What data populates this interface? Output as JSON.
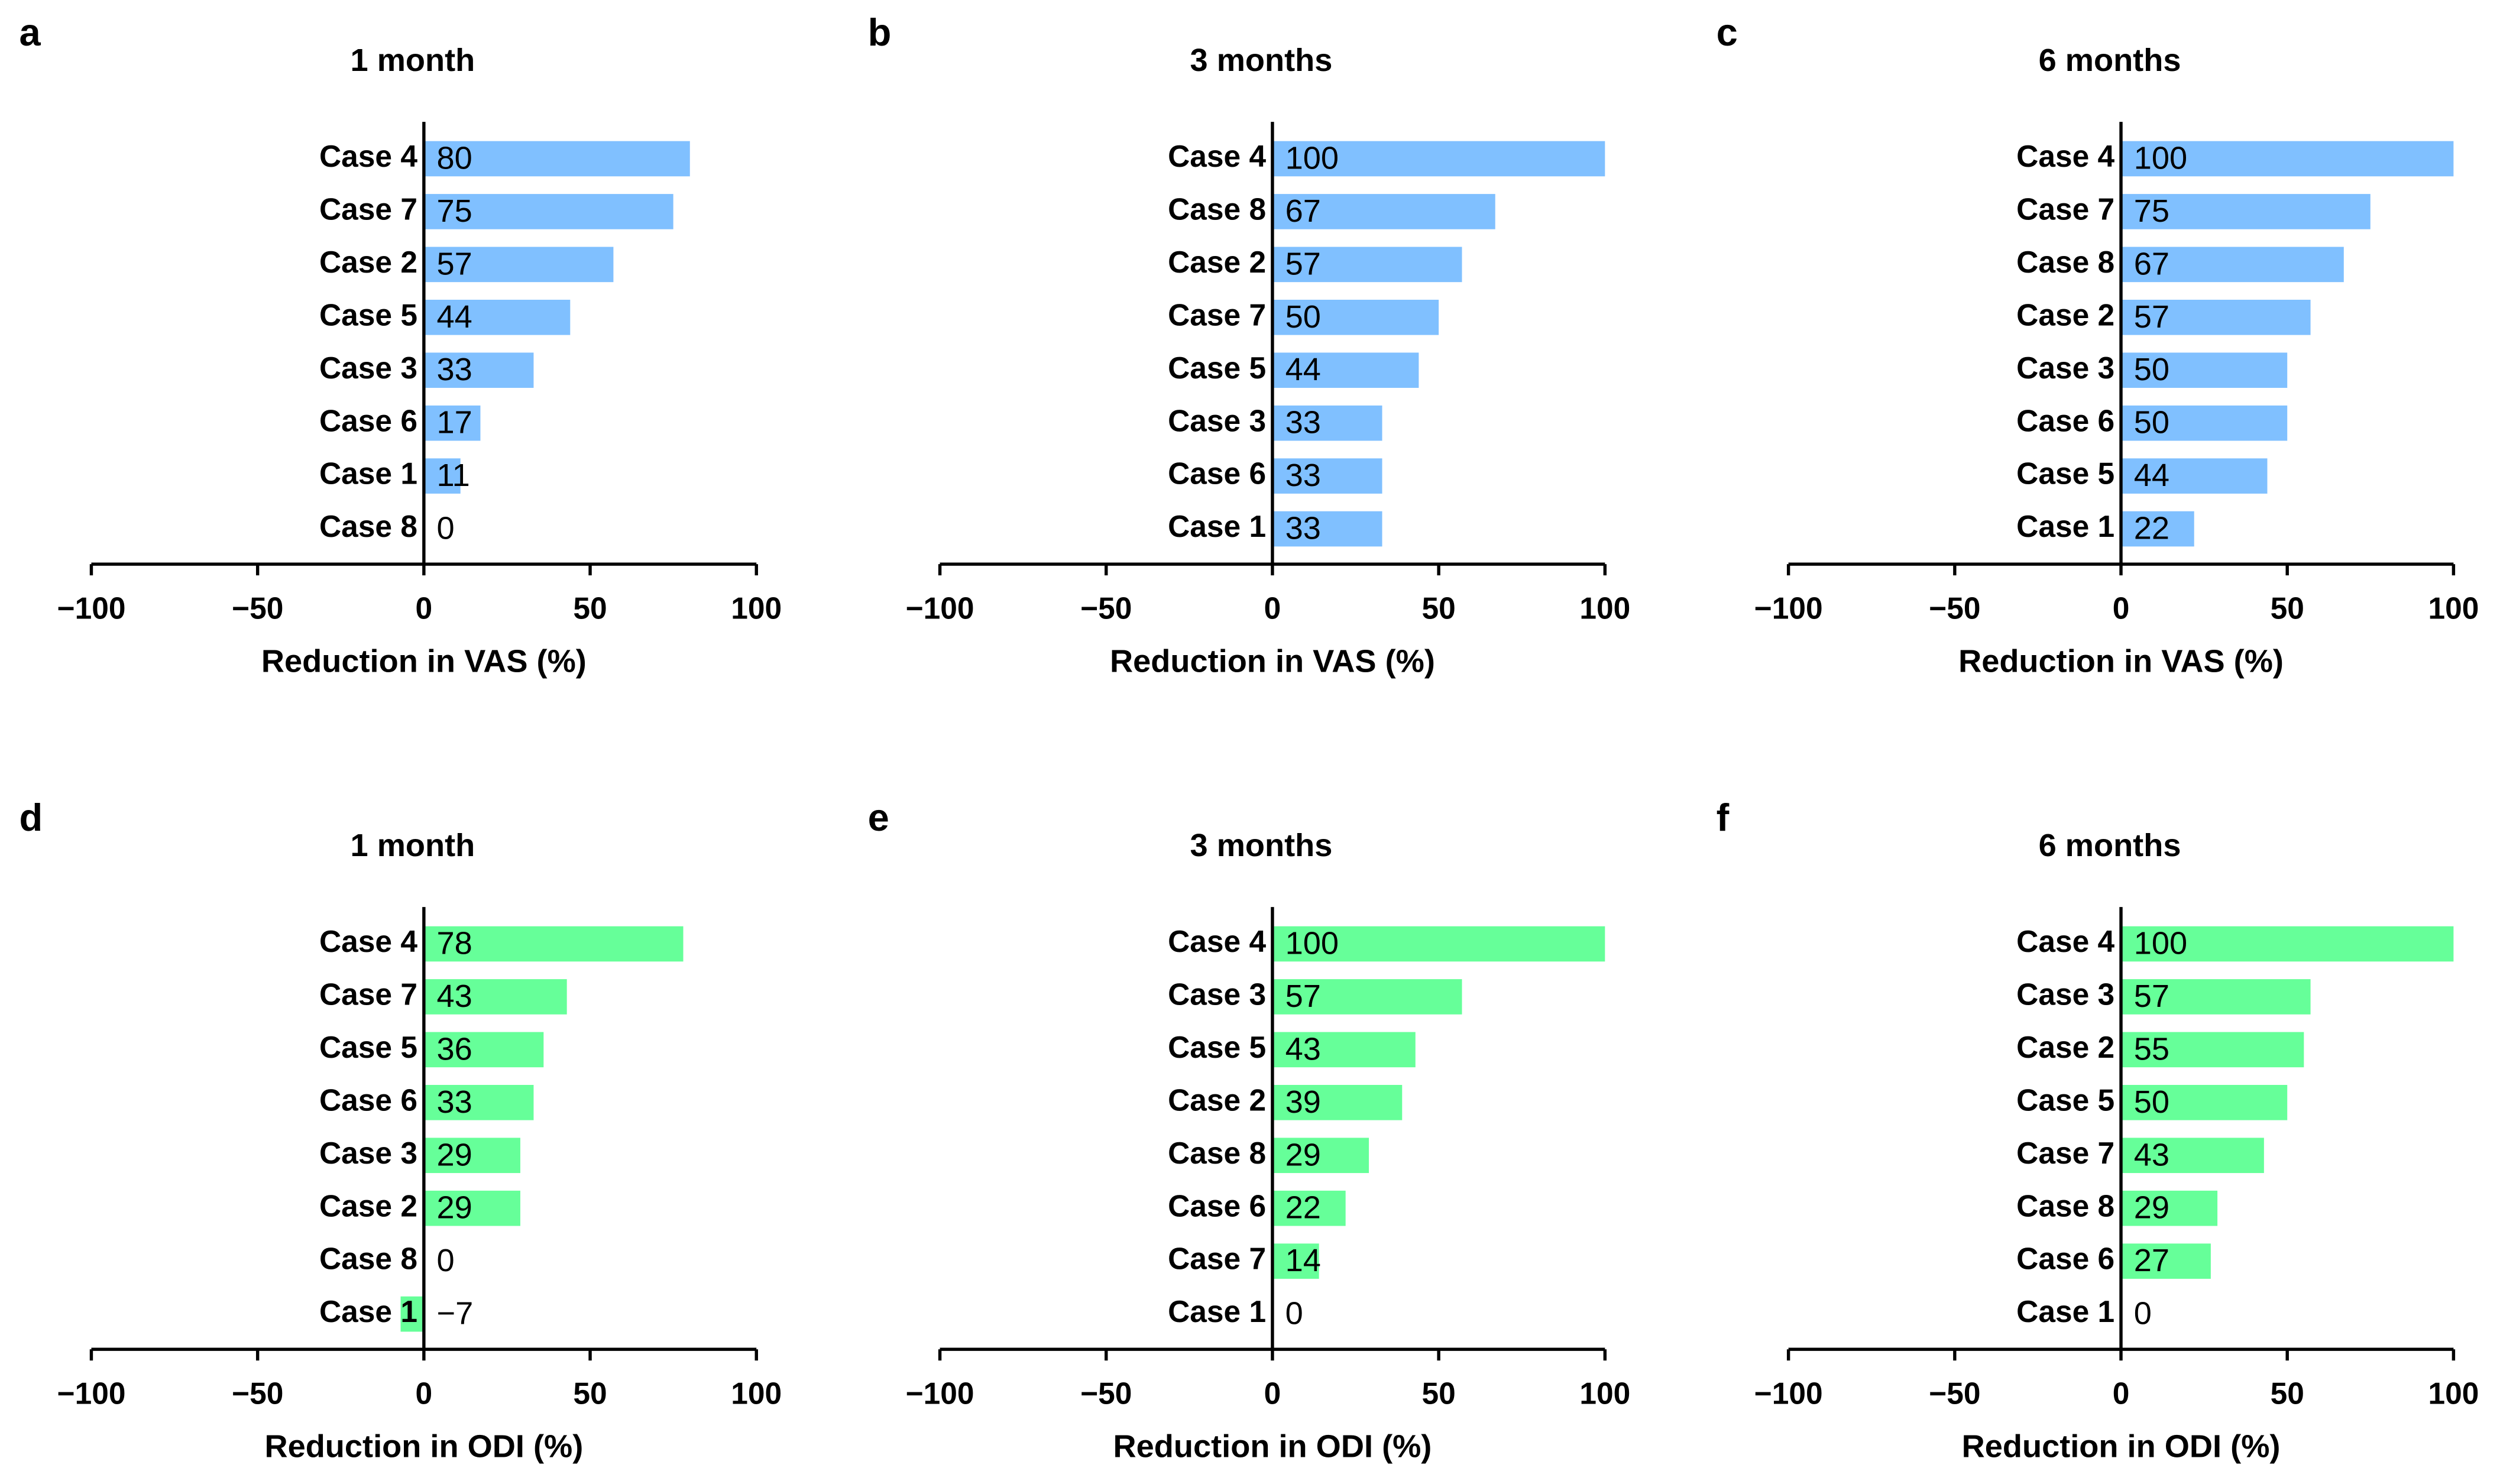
{
  "chart_data": [
    {
      "type": "bar",
      "orientation": "horizontal",
      "panel": "a",
      "title": "1 month",
      "xlabel": "Reduction in VAS (%)",
      "categories": [
        "Case 4",
        "Case 7",
        "Case 2",
        "Case 5",
        "Case 3",
        "Case 6",
        "Case 1",
        "Case 8"
      ],
      "values": [
        80,
        75,
        57,
        44,
        33,
        17,
        11,
        0
      ],
      "color": "#80c0ff",
      "xlim": [
        -100,
        100
      ],
      "xticks": [
        {
          "value": -100,
          "label": "−100"
        },
        {
          "value": -50,
          "label": "−50"
        },
        0,
        50,
        100
      ]
    },
    {
      "type": "bar",
      "orientation": "horizontal",
      "panel": "b",
      "title": "3 months",
      "xlabel": "Reduction in VAS (%)",
      "categories": [
        "Case 4",
        "Case 8",
        "Case 2",
        "Case 7",
        "Case 5",
        "Case 3",
        "Case 6",
        "Case 1"
      ],
      "values": [
        100,
        67,
        57,
        50,
        44,
        33,
        33,
        33
      ],
      "color": "#80c0ff",
      "xlim": [
        -100,
        100
      ],
      "xticks": [
        {
          "value": -100,
          "label": "−100"
        },
        {
          "value": -50,
          "label": "−50"
        },
        0,
        50,
        100
      ]
    },
    {
      "type": "bar",
      "orientation": "horizontal",
      "panel": "c",
      "title": "6 months",
      "xlabel": "Reduction in VAS (%)",
      "categories": [
        "Case 4",
        "Case 7",
        "Case 8",
        "Case 2",
        "Case 3",
        "Case 6",
        "Case 5",
        "Case 1"
      ],
      "values": [
        100,
        75,
        67,
        57,
        50,
        50,
        44,
        22
      ],
      "color": "#80c0ff",
      "xlim": [
        -100,
        100
      ],
      "xticks": [
        {
          "value": -100,
          "label": "−100"
        },
        {
          "value": -50,
          "label": "−50"
        },
        0,
        50,
        100
      ]
    },
    {
      "type": "bar",
      "orientation": "horizontal",
      "panel": "d",
      "title": "1 month",
      "xlabel": "Reduction in ODI (%)",
      "categories": [
        "Case 4",
        "Case 7",
        "Case 5",
        "Case 6",
        "Case 3",
        "Case 2",
        "Case 8",
        "Case 1"
      ],
      "values": [
        78,
        43,
        36,
        33,
        29,
        29,
        0,
        -7
      ],
      "value_labels": [
        "78",
        "43",
        "36",
        "33",
        "29",
        "29",
        "0",
        "−7"
      ],
      "color": "#66ff99",
      "xlim": [
        -100,
        100
      ],
      "xticks": [
        {
          "value": -100,
          "label": "−100"
        },
        {
          "value": -50,
          "label": "−50"
        },
        0,
        50,
        100
      ]
    },
    {
      "type": "bar",
      "orientation": "horizontal",
      "panel": "e",
      "title": "3 months",
      "xlabel": "Reduction in ODI (%)",
      "categories": [
        "Case 4",
        "Case 3",
        "Case 5",
        "Case 2",
        "Case 8",
        "Case 6",
        "Case 7",
        "Case 1"
      ],
      "values": [
        100,
        57,
        43,
        39,
        29,
        22,
        14,
        0
      ],
      "color": "#66ff99",
      "xlim": [
        -100,
        100
      ],
      "xticks": [
        {
          "value": -100,
          "label": "−100"
        },
        {
          "value": -50,
          "label": "−50"
        },
        0,
        50,
        100
      ]
    },
    {
      "type": "bar",
      "orientation": "horizontal",
      "panel": "f",
      "title": "6 months",
      "xlabel": "Reduction in ODI (%)",
      "categories": [
        "Case 4",
        "Case 3",
        "Case 2",
        "Case 5",
        "Case 7",
        "Case 8",
        "Case 6",
        "Case 1"
      ],
      "values": [
        100,
        57,
        55,
        50,
        43,
        29,
        27,
        0
      ],
      "color": "#66ff99",
      "xlim": [
        -100,
        100
      ],
      "xticks": [
        {
          "value": -100,
          "label": "−100"
        },
        {
          "value": -50,
          "label": "−50"
        },
        0,
        50,
        100
      ]
    }
  ]
}
